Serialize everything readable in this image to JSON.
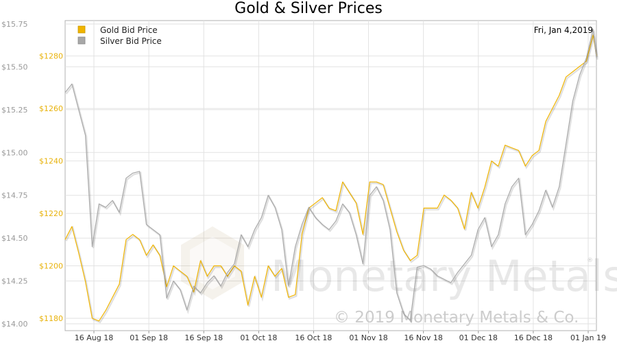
{
  "chart_data": {
    "type": "line",
    "title": "Gold & Silver Prices",
    "date_label": "Fri, Jan 4,2019",
    "watermark": "Monetary Metals",
    "copyright": "© 2019 Monetary Metals & Co.",
    "grid": true,
    "legend_position": "top-left",
    "x_ticks": [
      "16 Aug 18",
      "01 Sep 18",
      "16 Sep 18",
      "01 Oct 18",
      "16 Oct 18",
      "01 Nov 18",
      "16 Nov 18",
      "01 Dec 18",
      "16 Dec 18",
      "01 Jan 19"
    ],
    "xlim": [
      0,
      157
    ],
    "y_left": {
      "ticks": [
        "$1180",
        "$1200",
        "$1220",
        "$1240",
        "$1260",
        "$1280"
      ],
      "lim": [
        1175.3,
        1293.5
      ],
      "color": "#e8b20a"
    },
    "y_right": {
      "ticks": [
        "$14.00",
        "$14.25",
        "$14.50",
        "$14.75",
        "$15.00",
        "$15.25",
        "$15.50",
        "$15.75"
      ],
      "lim": [
        13.96,
        15.77
      ],
      "color": "#999999"
    },
    "series": [
      {
        "name": "Gold Bid Price",
        "axis": "left",
        "color": "#f0b400",
        "x": [
          0,
          2,
          4,
          6,
          8,
          10,
          12,
          14,
          16,
          18,
          20,
          22,
          24,
          26,
          28,
          30,
          32,
          34,
          36,
          38,
          40,
          42,
          44,
          46,
          48,
          50,
          52,
          54,
          56,
          58,
          60,
          62,
          64,
          66,
          68,
          70,
          72,
          74,
          76,
          78,
          80,
          82,
          84,
          86,
          88,
          90,
          92,
          94,
          96,
          98,
          100,
          102,
          104,
          106,
          108,
          110,
          112,
          114,
          116,
          118,
          120,
          122,
          124,
          126,
          128,
          130,
          132,
          134,
          136,
          138,
          140,
          142,
          144,
          146,
          148,
          150,
          152,
          154,
          156,
          157
        ],
        "values": [
          1210,
          1215,
          1205,
          1194,
          1180,
          1179,
          1183,
          1188,
          1193,
          1210,
          1212,
          1210,
          1204,
          1208,
          1204,
          1192,
          1200,
          1198,
          1196,
          1190,
          1202,
          1196,
          1200,
          1200,
          1196,
          1200,
          1198,
          1185,
          1196,
          1188,
          1200,
          1196,
          1199,
          1188,
          1189,
          1212,
          1222,
          1224,
          1226,
          1222,
          1221,
          1232,
          1228,
          1224,
          1212,
          1232,
          1232,
          1231,
          1222,
          1213,
          1206,
          1202,
          1204,
          1222,
          1222,
          1222,
          1227,
          1225,
          1222,
          1214,
          1228,
          1222,
          1230,
          1240,
          1238,
          1246,
          1245,
          1244,
          1238,
          1242,
          1244,
          1255,
          1260,
          1265,
          1272,
          1274,
          1276,
          1278,
          1288,
          1280
        ],
        "legend_label": "Gold Bid Price"
      },
      {
        "name": "Silver Bid Price",
        "axis": "right",
        "color": "#a8a8a8",
        "x": [
          0,
          2,
          4,
          6,
          8,
          10,
          12,
          14,
          16,
          18,
          20,
          22,
          24,
          26,
          28,
          30,
          32,
          34,
          36,
          38,
          40,
          42,
          44,
          46,
          48,
          50,
          52,
          54,
          56,
          58,
          60,
          62,
          64,
          66,
          68,
          70,
          72,
          74,
          76,
          78,
          80,
          82,
          84,
          86,
          88,
          90,
          92,
          94,
          96,
          98,
          100,
          102,
          104,
          106,
          108,
          110,
          112,
          114,
          116,
          118,
          120,
          122,
          124,
          126,
          128,
          130,
          132,
          134,
          136,
          138,
          140,
          142,
          144,
          146,
          148,
          150,
          152,
          154,
          156,
          157
        ],
        "values": [
          15.35,
          15.4,
          15.25,
          15.1,
          14.45,
          14.7,
          14.68,
          14.72,
          14.65,
          14.85,
          14.88,
          14.89,
          14.58,
          14.55,
          14.52,
          14.15,
          14.25,
          14.2,
          14.08,
          14.22,
          14.18,
          14.24,
          14.28,
          14.22,
          14.3,
          14.35,
          14.52,
          14.45,
          14.55,
          14.62,
          14.75,
          14.68,
          14.55,
          14.22,
          14.45,
          14.58,
          14.68,
          14.62,
          14.58,
          14.55,
          14.6,
          14.7,
          14.65,
          14.52,
          14.35,
          14.75,
          14.8,
          14.72,
          14.55,
          14.18,
          14.06,
          14.02,
          14.33,
          14.34,
          14.32,
          14.28,
          14.26,
          14.24,
          14.3,
          14.35,
          14.4,
          14.55,
          14.62,
          14.45,
          14.52,
          14.7,
          14.8,
          14.85,
          14.52,
          14.58,
          14.66,
          14.78,
          14.68,
          14.8,
          15.05,
          15.3,
          15.45,
          15.55,
          15.72,
          15.55
        ],
        "legend_label": "Silver Bid Price"
      }
    ]
  }
}
